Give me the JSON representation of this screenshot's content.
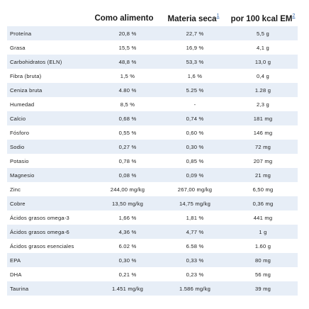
{
  "header": {
    "col1": "Como alimento",
    "col2": "Materia seca",
    "col2_note": "1",
    "col3": "por 100 kcal EM",
    "col3_note": "2"
  },
  "rows": [
    {
      "label": "Proteína",
      "as_fed": "20,8 %",
      "dry": "22,7 %",
      "per100": "5,5 g"
    },
    {
      "label": "Grasa",
      "as_fed": "15,5 %",
      "dry": "16,9 %",
      "per100": "4,1 g"
    },
    {
      "label": "Carbohidratos (ELN)",
      "as_fed": "48,8 %",
      "dry": "53,3 %",
      "per100": "13,0 g"
    },
    {
      "label": "Fibra (bruta)",
      "as_fed": "1,5 %",
      "dry": "1,6 %",
      "per100": "0,4 g"
    },
    {
      "label": "Ceniza bruta",
      "as_fed": "4.80 %",
      "dry": "5.25 %",
      "per100": "1.28 g"
    },
    {
      "label": "Humedad",
      "as_fed": "8,5 %",
      "dry": "-",
      "per100": "2,3 g"
    },
    {
      "label": "Calcio",
      "as_fed": "0,68 %",
      "dry": "0,74 %",
      "per100": "181 mg"
    },
    {
      "label": "Fósforo",
      "as_fed": "0,55 %",
      "dry": "0,60 %",
      "per100": "146 mg"
    },
    {
      "label": "Sodio",
      "as_fed": "0,27 %",
      "dry": "0,30 %",
      "per100": "72 mg"
    },
    {
      "label": "Potasio",
      "as_fed": "0,78 %",
      "dry": "0,85 %",
      "per100": "207 mg"
    },
    {
      "label": "Magnesio",
      "as_fed": "0,08 %",
      "dry": "0,09 %",
      "per100": "21 mg"
    },
    {
      "label": "Zinc",
      "as_fed": "244,00 mg/kg",
      "dry": "267,00 mg/kg",
      "per100": "6,50 mg"
    },
    {
      "label": "Cobre",
      "as_fed": "13,50 mg/kg",
      "dry": "14,75 mg/kg",
      "per100": "0,36 mg"
    },
    {
      "label": "Ácidos grasos omega-3",
      "as_fed": "1,66 %",
      "dry": "1,81 %",
      "per100": "441 mg"
    },
    {
      "label": "Ácidos grasos omega-6",
      "as_fed": "4,36 %",
      "dry": "4,77 %",
      "per100": "1 g"
    },
    {
      "label": "Ácidos grasos esenciales",
      "as_fed": "6.02 %",
      "dry": "6.58 %",
      "per100": "1.60 g"
    },
    {
      "label": "EPA",
      "as_fed": "0,30 %",
      "dry": "0,33 %",
      "per100": "80 mg"
    },
    {
      "label": "DHA",
      "as_fed": "0,21 %",
      "dry": "0,23 %",
      "per100": "56 mg"
    },
    {
      "label": "Taurina",
      "as_fed": "1.451 mg/kg",
      "dry": "1.586 mg/kg",
      "per100": "39 mg"
    }
  ]
}
